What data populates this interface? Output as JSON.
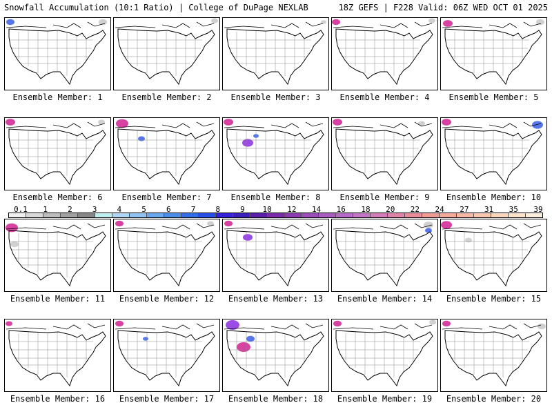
{
  "header": {
    "left": "Snowfall Accumulation (10:1 Ratio) | College of DuPage NEXLAB",
    "right": "18Z GEFS | F228 Valid: 06Z WED OCT 01 2025"
  },
  "colorbar": {
    "labels": [
      "0.1",
      "1",
      "2",
      "3",
      "4",
      "5",
      "6",
      "7",
      "8",
      "9",
      "10",
      "12",
      "14",
      "16",
      "18",
      "20",
      "22",
      "24",
      "27",
      "31",
      "35",
      "39"
    ],
    "colors": [
      "#f0f0f0",
      "#d9d9d9",
      "#bdbdbd",
      "#a0a0a0",
      "#878787",
      "#bfeef0",
      "#b0d8f5",
      "#8ec3f3",
      "#6aa8ee",
      "#4a8de8",
      "#2f6ee6",
      "#2a4fe6",
      "#3322d8",
      "#3a1fbd",
      "#5a1ea8",
      "#7a2ca8",
      "#8c3cb0",
      "#9c4cb8",
      "#a85cc0",
      "#b46ac6",
      "#c474c4",
      "#d27cb8",
      "#de84a8",
      "#e88c9a",
      "#f09a94",
      "#f4aa98",
      "#f6b8a0",
      "#f8c8ac",
      "#fad6bc",
      "#fce4cc",
      "#fdeedc"
    ]
  },
  "member_label_prefix": "Ensemble Member: ",
  "members": [
    {
      "label": "Ensemble Member: 1"
    },
    {
      "label": "Ensemble Member: 2"
    },
    {
      "label": "Ensemble Member: 3"
    },
    {
      "label": "Ensemble Member: 4"
    },
    {
      "label": "Ensemble Member: 5"
    },
    {
      "label": "Ensemble Member: 6"
    },
    {
      "label": "Ensemble Member: 7"
    },
    {
      "label": "Ensemble Member: 8"
    },
    {
      "label": "Ensemble Member: 9"
    },
    {
      "label": "Ensemble Member: 10"
    },
    {
      "label": "Ensemble Member: 11"
    },
    {
      "label": "Ensemble Member: 12"
    },
    {
      "label": "Ensemble Member: 13"
    },
    {
      "label": "Ensemble Member: 14"
    },
    {
      "label": "Ensemble Member: 15"
    },
    {
      "label": "Ensemble Member: 16"
    },
    {
      "label": "Ensemble Member: 17"
    },
    {
      "label": "Ensemble Member: 18"
    },
    {
      "label": "Ensemble Member: 19"
    },
    {
      "label": "Ensemble Member: 20"
    }
  ],
  "colors": {
    "border": "#000000",
    "snow_light": "#c8c8c8",
    "snow_blue": "#3a5ee6",
    "snow_purple": "#8a2be2",
    "snow_magenta": "#d02090"
  }
}
